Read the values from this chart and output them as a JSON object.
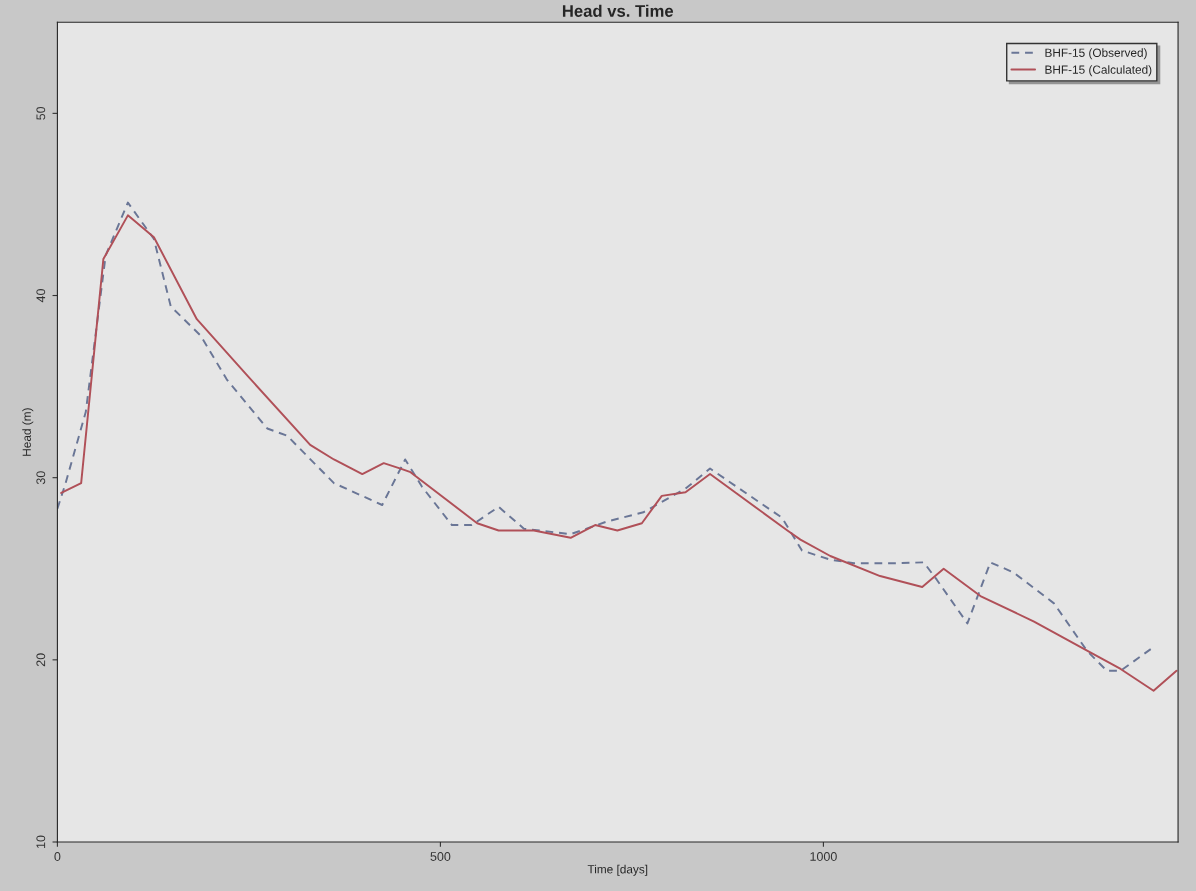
{
  "chart_data": {
    "type": "line",
    "title": "Head vs. Time",
    "xlabel": "Time [days]",
    "ylabel": "Head (m)",
    "xlim": [
      0,
      1463
    ],
    "ylim": [
      10,
      55
    ],
    "xticks": [
      0,
      500,
      1000
    ],
    "yticks": [
      10,
      20,
      30,
      40,
      50
    ],
    "grid": false,
    "legend": "top right",
    "marker": "none",
    "series": [
      {
        "name": "BHF-15 (Observed)",
        "color": "#6a7696",
        "line_style": "dashed",
        "x": [
          0,
          10,
          37,
          63,
          92,
          126,
          148,
          187,
          221,
          274,
          300,
          361,
          424,
          454,
          476,
          515,
          541,
          576,
          609,
          670,
          718,
          765,
          820,
          852,
          946,
          972,
          1009,
          1040,
          1092,
          1131,
          1148,
          1188,
          1218,
          1248,
          1301,
          1344,
          1370,
          1388,
          1431
        ],
        "values": [
          28.3,
          29.6,
          33.6,
          42.2,
          45.1,
          43.1,
          39.4,
          37.8,
          35.4,
          32.7,
          32.3,
          29.7,
          28.5,
          31.0,
          29.5,
          27.4,
          27.4,
          28.4,
          27.2,
          26.9,
          27.6,
          28.1,
          29.4,
          30.5,
          27.8,
          26.0,
          25.5,
          25.3,
          25.3,
          25.35,
          24.4,
          22.0,
          25.35,
          24.8,
          23.1,
          20.5,
          19.4,
          19.4,
          20.7
        ]
      },
      {
        "name": "BHF-15 (Calculated)",
        "color": "#b05058",
        "line_style": "solid",
        "x": [
          5,
          31,
          60,
          92,
          126,
          182,
          248,
          330,
          361,
          398,
          426,
          448,
          461,
          548,
          576,
          622,
          670,
          702,
          731,
          763,
          789,
          820,
          852,
          953,
          970,
          1009,
          1074,
          1129,
          1157,
          1205,
          1275,
          1349,
          1388,
          1431,
          1461
        ],
        "values": [
          29.16,
          29.7,
          42.0,
          44.4,
          43.2,
          38.7,
          35.6,
          31.8,
          31.0,
          30.2,
          30.8,
          30.5,
          30.3,
          27.5,
          27.1,
          27.1,
          26.7,
          27.4,
          27.1,
          27.5,
          29.0,
          29.2,
          30.2,
          27.1,
          26.6,
          25.7,
          24.6,
          24.0,
          25.0,
          23.5,
          22.1,
          20.4,
          19.5,
          18.3,
          19.4
        ]
      }
    ]
  }
}
